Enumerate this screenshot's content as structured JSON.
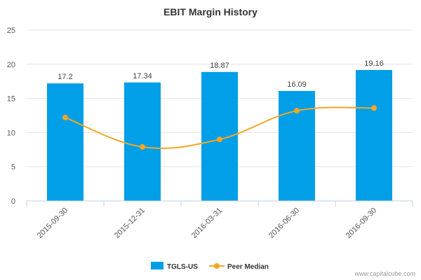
{
  "chart_data": {
    "type": "bar",
    "title": "EBIT Margin History",
    "categories": [
      "2015-09-30",
      "2015-12-31",
      "2016-03-31",
      "2016-06-30",
      "2016-09-30"
    ],
    "series": [
      {
        "name": "TGLS-US",
        "type": "bar",
        "color": "#009fe8",
        "values": [
          17.2,
          17.34,
          18.87,
          16.09,
          19.16
        ],
        "labels": [
          "17.2",
          "17.34",
          "18.87",
          "16.09",
          "19.16"
        ]
      },
      {
        "name": "Peer Median",
        "type": "line",
        "color": "#f5a623",
        "values": [
          12.2,
          7.9,
          9.0,
          13.2,
          13.6
        ]
      }
    ],
    "ylim": [
      0,
      25
    ],
    "yticks": [
      "0",
      "5",
      "10",
      "15",
      "20",
      "25"
    ],
    "grid": true,
    "legend_position": "bottom-center"
  },
  "credit": "www.capitalcube.com"
}
